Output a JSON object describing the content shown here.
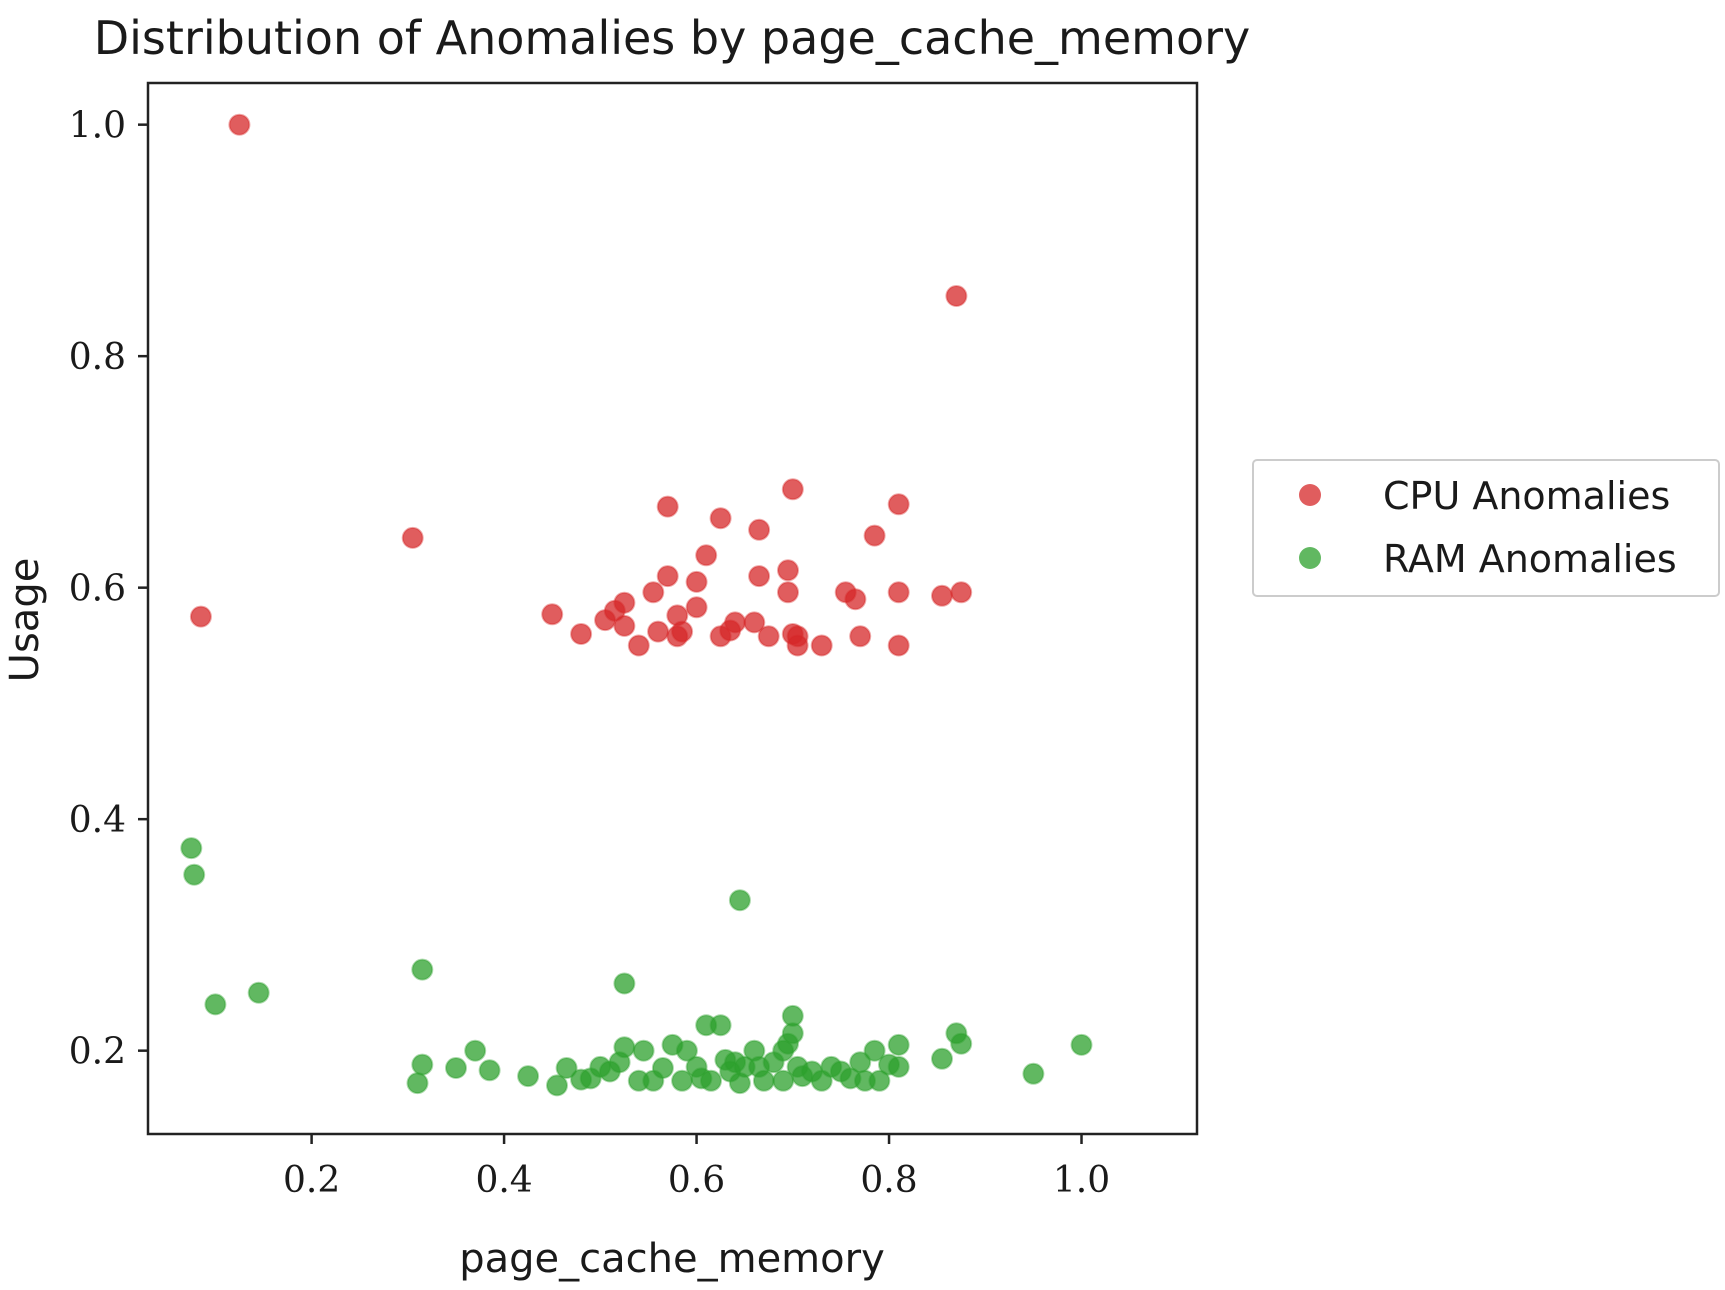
{
  "chart_data": {
    "type": "scatter",
    "title": "Distribution of Anomalies by page_cache_memory",
    "xlabel": "page_cache_memory",
    "ylabel": "Usage",
    "xlim": [
      0.03,
      1.12
    ],
    "ylim": [
      0.128,
      1.036
    ],
    "xticks": [
      0.2,
      0.4,
      0.6,
      0.8,
      1.0
    ],
    "xtick_labels": [
      "0.2",
      "0.4",
      "0.6",
      "0.8",
      "1.0"
    ],
    "yticks": [
      0.2,
      0.4,
      0.6,
      0.8,
      1.0
    ],
    "ytick_labels": [
      "0.2",
      "0.4",
      "0.6",
      "0.8",
      "1.0"
    ],
    "grid": false,
    "legend_position": "center-right, outside plot",
    "series": [
      {
        "name": "CPU Anomalies",
        "color": "#d62728",
        "points": [
          [
            0.125,
            1.0
          ],
          [
            0.87,
            0.852
          ],
          [
            0.085,
            0.575
          ],
          [
            0.305,
            0.643
          ],
          [
            0.45,
            0.577
          ],
          [
            0.48,
            0.56
          ],
          [
            0.505,
            0.572
          ],
          [
            0.515,
            0.58
          ],
          [
            0.525,
            0.587
          ],
          [
            0.525,
            0.567
          ],
          [
            0.54,
            0.55
          ],
          [
            0.555,
            0.596
          ],
          [
            0.56,
            0.562
          ],
          [
            0.57,
            0.67
          ],
          [
            0.57,
            0.61
          ],
          [
            0.58,
            0.576
          ],
          [
            0.58,
            0.558
          ],
          [
            0.585,
            0.562
          ],
          [
            0.6,
            0.605
          ],
          [
            0.6,
            0.583
          ],
          [
            0.61,
            0.628
          ],
          [
            0.625,
            0.66
          ],
          [
            0.625,
            0.558
          ],
          [
            0.635,
            0.563
          ],
          [
            0.64,
            0.57
          ],
          [
            0.66,
            0.57
          ],
          [
            0.665,
            0.65
          ],
          [
            0.665,
            0.61
          ],
          [
            0.675,
            0.558
          ],
          [
            0.695,
            0.596
          ],
          [
            0.695,
            0.615
          ],
          [
            0.7,
            0.685
          ],
          [
            0.7,
            0.56
          ],
          [
            0.705,
            0.55
          ],
          [
            0.705,
            0.558
          ],
          [
            0.73,
            0.55
          ],
          [
            0.755,
            0.596
          ],
          [
            0.765,
            0.59
          ],
          [
            0.77,
            0.558
          ],
          [
            0.785,
            0.645
          ],
          [
            0.81,
            0.672
          ],
          [
            0.81,
            0.596
          ],
          [
            0.81,
            0.55
          ],
          [
            0.855,
            0.593
          ],
          [
            0.875,
            0.596
          ]
        ]
      },
      {
        "name": "RAM Anomalies",
        "color": "#2ca02c",
        "points": [
          [
            0.075,
            0.375
          ],
          [
            0.078,
            0.352
          ],
          [
            0.1,
            0.24
          ],
          [
            0.145,
            0.25
          ],
          [
            0.31,
            0.172
          ],
          [
            0.315,
            0.27
          ],
          [
            0.315,
            0.188
          ],
          [
            0.35,
            0.185
          ],
          [
            0.37,
            0.2
          ],
          [
            0.385,
            0.183
          ],
          [
            0.425,
            0.178
          ],
          [
            0.455,
            0.17
          ],
          [
            0.465,
            0.185
          ],
          [
            0.48,
            0.175
          ],
          [
            0.49,
            0.176
          ],
          [
            0.5,
            0.186
          ],
          [
            0.51,
            0.182
          ],
          [
            0.52,
            0.19
          ],
          [
            0.525,
            0.203
          ],
          [
            0.525,
            0.258
          ],
          [
            0.54,
            0.174
          ],
          [
            0.545,
            0.2
          ],
          [
            0.555,
            0.174
          ],
          [
            0.565,
            0.185
          ],
          [
            0.575,
            0.205
          ],
          [
            0.585,
            0.174
          ],
          [
            0.59,
            0.2
          ],
          [
            0.6,
            0.186
          ],
          [
            0.605,
            0.176
          ],
          [
            0.61,
            0.222
          ],
          [
            0.615,
            0.174
          ],
          [
            0.625,
            0.222
          ],
          [
            0.63,
            0.192
          ],
          [
            0.635,
            0.182
          ],
          [
            0.64,
            0.19
          ],
          [
            0.645,
            0.172
          ],
          [
            0.645,
            0.33
          ],
          [
            0.65,
            0.186
          ],
          [
            0.66,
            0.2
          ],
          [
            0.665,
            0.186
          ],
          [
            0.67,
            0.174
          ],
          [
            0.68,
            0.19
          ],
          [
            0.69,
            0.2
          ],
          [
            0.69,
            0.174
          ],
          [
            0.695,
            0.206
          ],
          [
            0.7,
            0.215
          ],
          [
            0.7,
            0.23
          ],
          [
            0.705,
            0.186
          ],
          [
            0.71,
            0.178
          ],
          [
            0.72,
            0.182
          ],
          [
            0.73,
            0.174
          ],
          [
            0.74,
            0.186
          ],
          [
            0.75,
            0.182
          ],
          [
            0.76,
            0.176
          ],
          [
            0.77,
            0.19
          ],
          [
            0.775,
            0.174
          ],
          [
            0.785,
            0.2
          ],
          [
            0.79,
            0.174
          ],
          [
            0.8,
            0.188
          ],
          [
            0.81,
            0.205
          ],
          [
            0.81,
            0.186
          ],
          [
            0.855,
            0.193
          ],
          [
            0.87,
            0.215
          ],
          [
            0.875,
            0.206
          ],
          [
            0.95,
            0.18
          ],
          [
            1.0,
            0.205
          ]
        ]
      }
    ]
  }
}
